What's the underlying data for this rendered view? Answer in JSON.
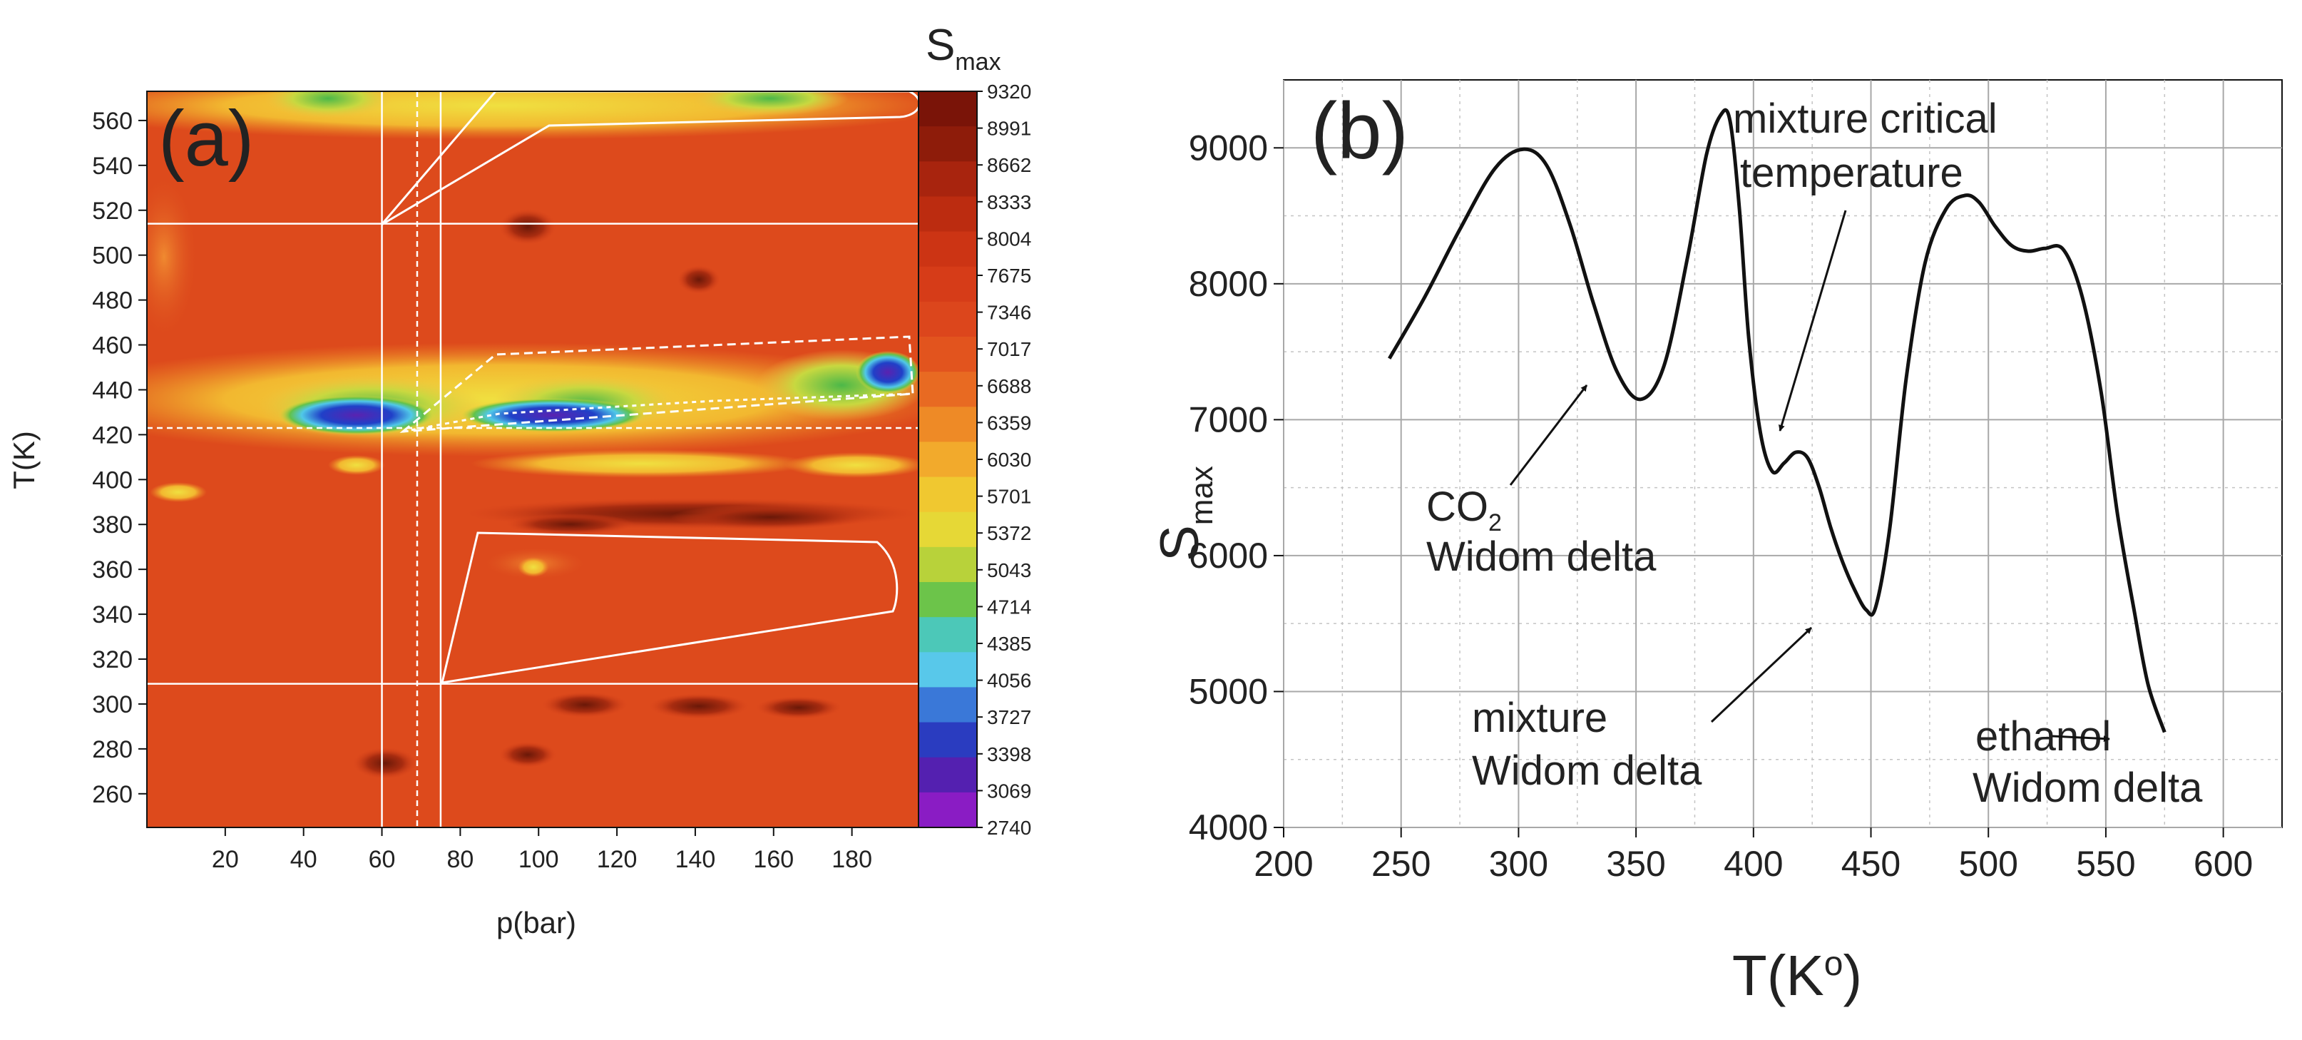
{
  "chart_data": [
    {
      "type": "heatmap",
      "panel_label": "(a)",
      "xlabel": "p(bar)",
      "ylabel": "T(K)",
      "xlim": [
        0,
        197
      ],
      "ylim": [
        245,
        573
      ],
      "x_ticks": [
        "20",
        "40",
        "60",
        "80",
        "100",
        "120",
        "140",
        "160",
        "180"
      ],
      "y_ticks": [
        "260",
        "280",
        "300",
        "320",
        "340",
        "360",
        "380",
        "400",
        "420",
        "440",
        "460",
        "480",
        "500",
        "520",
        "540",
        "560"
      ],
      "colorbar": {
        "title": "S",
        "title_sub": "max",
        "min": 2740,
        "max": 9320,
        "labels": [
          "9320",
          "8991",
          "8662",
          "8333",
          "8004",
          "7675",
          "7346",
          "7017",
          "6688",
          "6359",
          "6030",
          "5701",
          "5372",
          "5043",
          "4714",
          "4385",
          "4056",
          "3727",
          "3398",
          "3069",
          "2740"
        ]
      },
      "reference_lines": {
        "p_bar": [
          60,
          69,
          75
        ],
        "T_K": [
          514,
          423,
          309
        ]
      }
    },
    {
      "type": "line",
      "panel_label": "(b)",
      "xlabel": "T(K",
      "xlabel_sup": "o",
      "xlabel_end": ")",
      "ylabel": "S",
      "ylabel_sub": "max",
      "xlim": [
        200,
        625
      ],
      "ylim": [
        4000,
        9500
      ],
      "x_ticks": [
        "200",
        "250",
        "300",
        "350",
        "400",
        "450",
        "500",
        "550",
        "600"
      ],
      "y_ticks": [
        "4000",
        "5000",
        "6000",
        "7000",
        "8000",
        "9000"
      ],
      "series": [
        {
          "name": "S_max",
          "x": [
            245,
            260,
            275,
            290,
            302,
            312,
            322,
            332,
            342,
            352,
            362,
            372,
            380,
            386,
            390,
            394,
            398,
            403,
            408,
            413,
            418,
            423,
            428,
            433,
            438,
            443,
            448,
            452,
            458,
            465,
            473,
            482,
            490,
            496,
            503,
            510,
            517,
            524,
            532,
            540,
            548,
            555,
            562,
            568,
            575
          ],
          "values": [
            7450,
            7900,
            8400,
            8850,
            8990,
            8870,
            8430,
            7850,
            7350,
            7150,
            7400,
            8200,
            8950,
            9240,
            9200,
            8550,
            7600,
            6900,
            6620,
            6680,
            6760,
            6720,
            6500,
            6200,
            5950,
            5750,
            5600,
            5620,
            6200,
            7300,
            8150,
            8550,
            8650,
            8600,
            8420,
            8280,
            8240,
            8260,
            8250,
            7900,
            7200,
            6300,
            5600,
            5050,
            4700
          ]
        }
      ],
      "annotations": {
        "co2": {
          "line1": "CO",
          "sub": "2",
          "line2": "Widom delta"
        },
        "mct": {
          "line1": "mixture critical",
          "line2": "temperature"
        },
        "mixture": {
          "line1": "mixture",
          "line2": "Widom delta"
        },
        "ethanol": {
          "line1": "ethanol",
          "line2": "Widom delta"
        }
      }
    }
  ]
}
